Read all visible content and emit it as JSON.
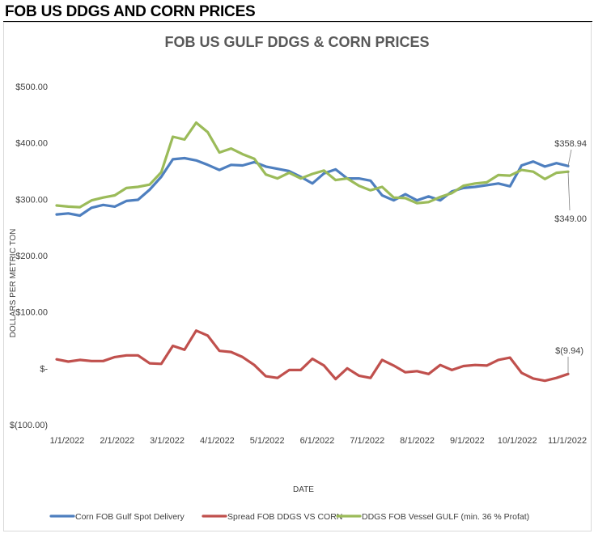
{
  "page": {
    "header": "FOB US DDGS AND CORN PRICES"
  },
  "chart_data": {
    "type": "line",
    "title": "FOB US GULF DDGS & CORN PRICES",
    "xlabel": "DATE",
    "ylabel": "DOLLARS PER METRIC TON",
    "ylim": [
      -100,
      500
    ],
    "y_ticks": [
      -100,
      0,
      100,
      200,
      300,
      400,
      500
    ],
    "y_tick_labels": [
      "$(100.00)",
      "$-",
      "$100.00",
      "$200.00",
      "$300.00",
      "$400.00",
      "$500.00"
    ],
    "x_ticks": [
      "1/1/2022",
      "2/1/2022",
      "3/1/2022",
      "4/1/2022",
      "5/1/2022",
      "6/1/2022",
      "7/1/2022",
      "8/1/2022",
      "9/1/2022",
      "10/1/2022",
      "11/1/2022"
    ],
    "grid": false,
    "legend_position": "bottom",
    "series": [
      {
        "name": "Corn FOB Gulf Spot Delivery",
        "color": "#4e7fbf",
        "values": [
          273,
          275,
          271,
          285,
          290,
          287,
          297,
          299,
          317,
          340,
          371,
          373,
          369,
          361,
          352,
          361,
          360,
          366,
          358,
          354,
          350,
          340,
          328,
          346,
          353,
          337,
          337,
          333,
          307,
          298,
          309,
          298,
          305,
          298,
          314,
          320,
          322,
          325,
          328,
          323,
          360,
          367,
          358,
          364,
          359
        ]
      },
      {
        "name": "Spread FOB DDGS VS CORN",
        "color": "#c0504d",
        "values": [
          16,
          12,
          15,
          13,
          13,
          20,
          23,
          23,
          9,
          8,
          40,
          33,
          67,
          58,
          31,
          29,
          20,
          6,
          -14,
          -17,
          -3,
          -3,
          17,
          5,
          -19,
          0,
          -13,
          -17,
          15,
          5,
          -7,
          -5,
          -10,
          6,
          -3,
          4,
          6,
          5,
          15,
          19,
          -8,
          -18,
          -22,
          -17,
          -9.94
        ]
      },
      {
        "name": "DDGS FOB Vessel GULF  (min. 36 % Profat)",
        "color": "#9bbb59",
        "values": [
          289,
          287,
          286,
          298,
          303,
          307,
          320,
          322,
          326,
          348,
          411,
          406,
          436,
          419,
          383,
          390,
          380,
          372,
          344,
          337,
          347,
          337,
          345,
          351,
          334,
          337,
          324,
          316,
          322,
          303,
          302,
          293,
          295,
          304,
          311,
          324,
          328,
          330,
          343,
          342,
          352,
          349,
          336,
          347,
          349
        ]
      }
    ],
    "annotations": [
      {
        "text": "$358.94",
        "series": 0
      },
      {
        "text": "$349.00",
        "series": 2
      },
      {
        "text": "$(9.94)",
        "series": 1
      }
    ]
  }
}
